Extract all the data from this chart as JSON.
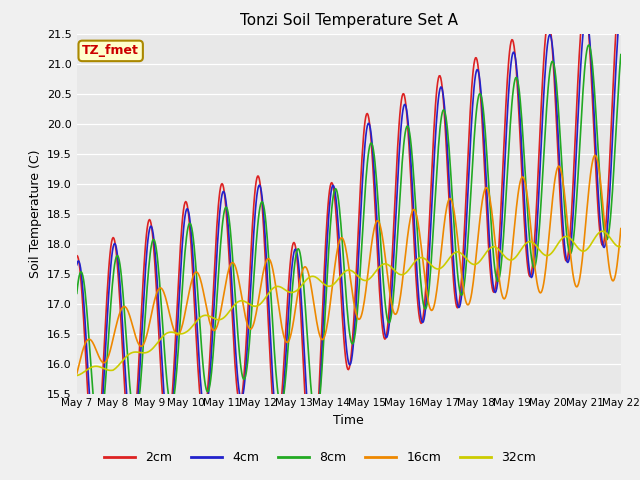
{
  "title": "Tonzi Soil Temperature Set A",
  "xlabel": "Time",
  "ylabel": "Soil Temperature (C)",
  "ylim": [
    15.5,
    21.5
  ],
  "x_tick_labels": [
    "May 7",
    "May 8",
    "May 9",
    "May 10",
    "May 11",
    "May 12",
    "May 13",
    "May 14",
    "May 15",
    "May 16",
    "May 17",
    "May 18",
    "May 19",
    "May 20",
    "May 21",
    "May 22"
  ],
  "legend_labels": [
    "2cm",
    "4cm",
    "8cm",
    "16cm",
    "32cm"
  ],
  "colors": [
    "#dd2222",
    "#2222cc",
    "#22aa22",
    "#ee8800",
    "#cccc00"
  ],
  "annotation_text": "TZ_fmet",
  "annotation_color": "#cc0000",
  "annotation_bg": "#ffffcc",
  "annotation_border": "#aa8800",
  "fig_bg_color": "#f0f0f0",
  "plot_bg_color": "#e8e8e8"
}
